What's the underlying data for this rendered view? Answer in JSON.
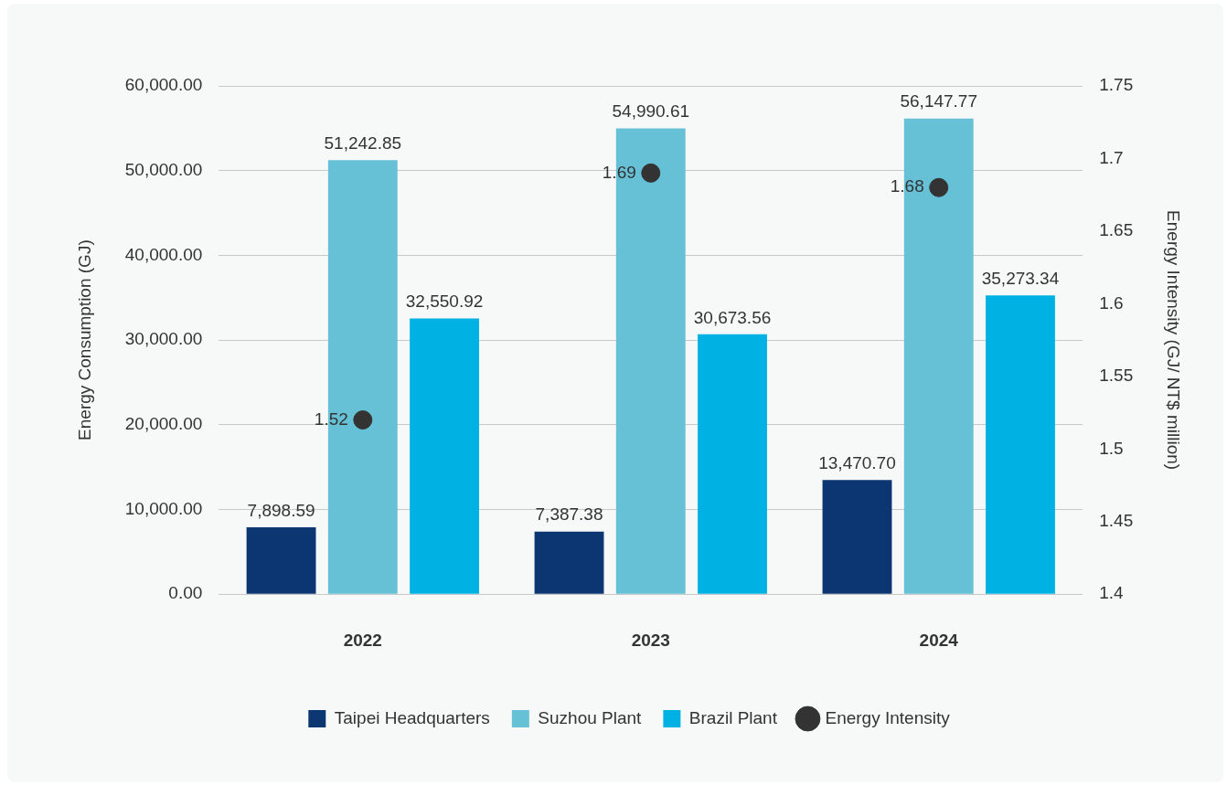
{
  "chart_data": {
    "type": "bar",
    "xlabel": null,
    "ylabel": "Energy Consumption (GJ)",
    "y2label": "Energy Intensity (GJ/ NT$ million)",
    "categories": [
      "2022",
      "2023",
      "2024"
    ],
    "series": [
      {
        "name": "Taipei Headquarters",
        "color": "#0b3672",
        "values": [
          7898.59,
          7387.38,
          13470.7
        ],
        "value_labels": [
          "7,898.59",
          "7,387.38",
          "13,470.70"
        ]
      },
      {
        "name": "Suzhou Plant",
        "color": "#67c1d6",
        "values": [
          51242.85,
          54990.61,
          56147.77
        ],
        "value_labels": [
          "51,242.85",
          "54,990.61",
          "56,147.77"
        ]
      },
      {
        "name": "Brazil Plant",
        "color": "#00b2e3",
        "values": [
          32550.92,
          30673.56,
          35273.34
        ],
        "value_labels": [
          "32,550.92",
          "30,673.56",
          "35,273.34"
        ]
      },
      {
        "name": "Energy Intensity",
        "type": "scatter",
        "axis": "y2",
        "color": "#333333",
        "values": [
          1.52,
          1.69,
          1.68
        ],
        "value_labels": [
          "1.52",
          "1.69",
          "1.68"
        ]
      }
    ],
    "ylim": [
      0,
      60000
    ],
    "yticks": [
      {
        "value": 0,
        "label": "0.00"
      },
      {
        "value": 10000,
        "label": "10,000.00"
      },
      {
        "value": 20000,
        "label": "20,000.00"
      },
      {
        "value": 30000,
        "label": "30,000.00"
      },
      {
        "value": 40000,
        "label": "40,000.00"
      },
      {
        "value": 50000,
        "label": "50,000.00"
      },
      {
        "value": 60000,
        "label": "60,000.00"
      }
    ],
    "y2lim": [
      1.4,
      1.75
    ],
    "y2ticks": [
      1.4,
      1.45,
      1.5,
      1.55,
      1.6,
      1.65,
      1.7,
      1.75
    ],
    "grid": "y",
    "legend": "bottom",
    "marker": "circle"
  }
}
